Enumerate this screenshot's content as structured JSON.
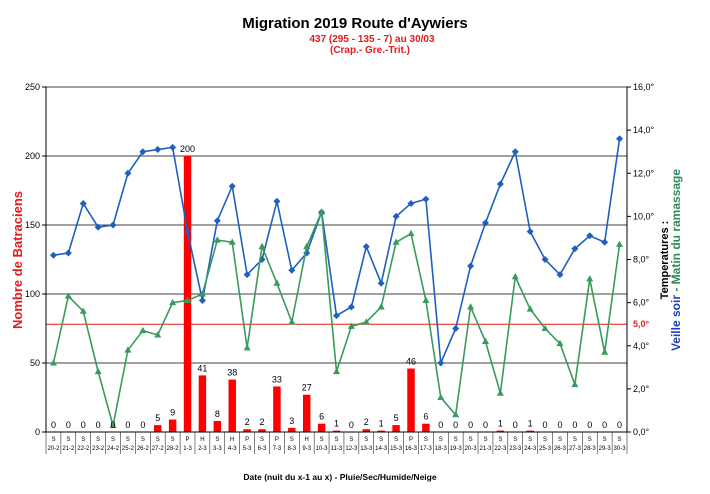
{
  "chart_data": {
    "type": "bar+line",
    "title": "Migration 2019 Route d'Aywiers",
    "subtitle_lines": [
      "437 (295 - 135 - 7) au 30/03",
      "(Crap.- Gre.-Trit.)"
    ],
    "xlabel": "Date (nuit du x-1 au x) - Pluie/Sec/Humide/Neige",
    "ylabel_left": "Nombre de Batraciens",
    "ylabel_right_parts": [
      "Temperatures :",
      "Veille soir",
      " - ",
      "Matin du ramassage"
    ],
    "ylim_left": [
      0,
      250
    ],
    "yticks_left": [
      "0",
      "50",
      "100",
      "150",
      "200",
      "250"
    ],
    "ylim_right": [
      0,
      16
    ],
    "yticks_right": [
      "0,0°",
      "2,0°",
      "4,0°",
      "6,0°",
      "8,0°",
      "10,0°",
      "12,0°",
      "14,0°",
      "16,0°"
    ],
    "reference_line": {
      "value": 5.0,
      "label": "5,0°",
      "color": "#e31a1c"
    },
    "categories": [
      "20-2",
      "21-2",
      "22-2",
      "23-2",
      "24-2",
      "25-2",
      "26-2",
      "27-2",
      "28-2",
      "1-3",
      "2-3",
      "3-3",
      "4-3",
      "5-3",
      "6-3",
      "7-3",
      "8-3",
      "9-3",
      "10-3",
      "11-3",
      "12-3",
      "13-3",
      "14-3",
      "15-3",
      "16-3",
      "17-3",
      "18-3",
      "19-3",
      "20-3",
      "21-3",
      "22-3",
      "23-3",
      "24-3",
      "25-3",
      "26-3",
      "27-3",
      "28-3",
      "29-3",
      "30-3"
    ],
    "weather": [
      "S",
      "S",
      "S",
      "S",
      "S",
      "S",
      "S",
      "S",
      "S",
      "P",
      "H",
      "S",
      "H",
      "P",
      "S",
      "P",
      "S",
      "H",
      "S",
      "S",
      "S",
      "S",
      "S",
      "S",
      "P",
      "S",
      "S",
      "S",
      "S",
      "S",
      "S",
      "S",
      "S",
      "S",
      "S",
      "S",
      "S",
      "S",
      "S"
    ],
    "series": [
      {
        "name": "Nombre de Batraciens",
        "kind": "bar",
        "axis": "left",
        "color": "#ff0000",
        "values": [
          0,
          0,
          0,
          0,
          0,
          0,
          0,
          5,
          9,
          200,
          41,
          8,
          38,
          2,
          2,
          33,
          3,
          27,
          6,
          1,
          0,
          2,
          1,
          5,
          46,
          6,
          0,
          0,
          0,
          0,
          1,
          0,
          1,
          0,
          0,
          0,
          0,
          0,
          0
        ]
      },
      {
        "name": "Veille soir",
        "kind": "line",
        "axis": "right",
        "color": "#1f5fbf",
        "values": [
          8.2,
          8.3,
          10.6,
          9.5,
          9.6,
          12.0,
          13.0,
          13.1,
          13.2,
          9.3,
          6.1,
          9.8,
          11.4,
          7.3,
          8.0,
          10.7,
          7.5,
          8.3,
          10.2,
          5.4,
          5.8,
          8.6,
          6.9,
          10.0,
          10.6,
          10.8,
          3.2,
          4.8,
          7.7,
          9.7,
          11.5,
          13.0,
          9.3,
          8.0,
          7.3,
          8.5,
          9.1,
          8.8,
          13.6
        ]
      },
      {
        "name": "Matin du ramassage",
        "kind": "line",
        "axis": "right",
        "color": "#3a9a5a",
        "values": [
          3.2,
          6.3,
          5.6,
          2.8,
          0.3,
          3.8,
          4.7,
          4.5,
          6.0,
          6.1,
          6.4,
          8.9,
          8.8,
          3.9,
          8.6,
          6.9,
          5.1,
          8.6,
          10.2,
          2.8,
          4.9,
          5.1,
          5.8,
          8.8,
          9.2,
          6.1,
          1.6,
          0.8,
          5.8,
          4.2,
          1.8,
          7.2,
          5.7,
          4.8,
          4.1,
          2.2,
          7.1,
          3.7,
          8.7
        ]
      }
    ],
    "grid": "horizontal",
    "legend": "none"
  }
}
